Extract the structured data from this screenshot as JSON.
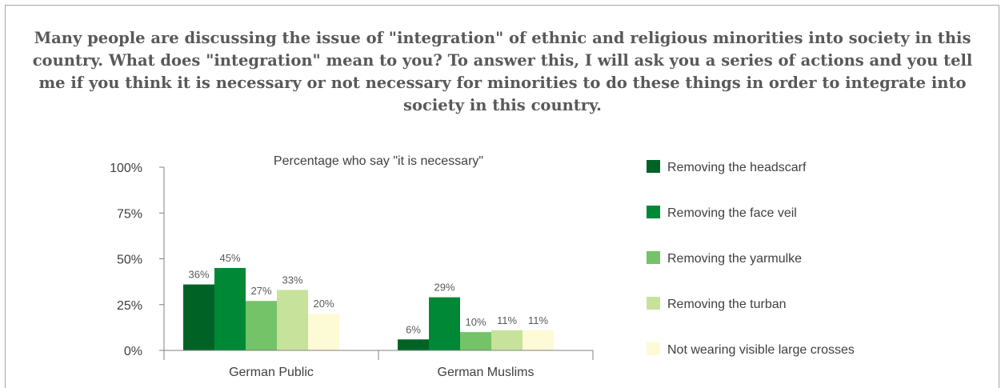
{
  "headline": "Many people are discussing the issue of \"integration\" of ethnic and religious minorities into society in this country. What does \"integration\" mean to you? To answer this, I will ask you a series of actions and you tell me if you think it is necessary or not necessary for minorities to do these things in order to integrate into society in this country.",
  "chart_data": {
    "type": "bar",
    "title": "Percentage who say \"it is necessary\"",
    "categories": [
      "German Public",
      "German Muslims"
    ],
    "series": [
      {
        "name": "Removing the headscarf",
        "values": [
          36,
          6
        ],
        "color": "#006325"
      },
      {
        "name": "Removing the face veil",
        "values": [
          45,
          29
        ],
        "color": "#008837"
      },
      {
        "name": "Removing the yarmulke",
        "values": [
          27,
          10
        ],
        "color": "#74c369"
      },
      {
        "name": "Removing the turban",
        "values": [
          33,
          11
        ],
        "color": "#c7e29b"
      },
      {
        "name": "Not wearing visible large crosses",
        "values": [
          20,
          11
        ],
        "color": "#fdfad6"
      }
    ],
    "yticks": [
      "0%",
      "25%",
      "50%",
      "75%",
      "100%"
    ],
    "ylim": [
      0,
      100
    ],
    "legend_position": "right",
    "grid": false,
    "value_suffix": "%"
  }
}
